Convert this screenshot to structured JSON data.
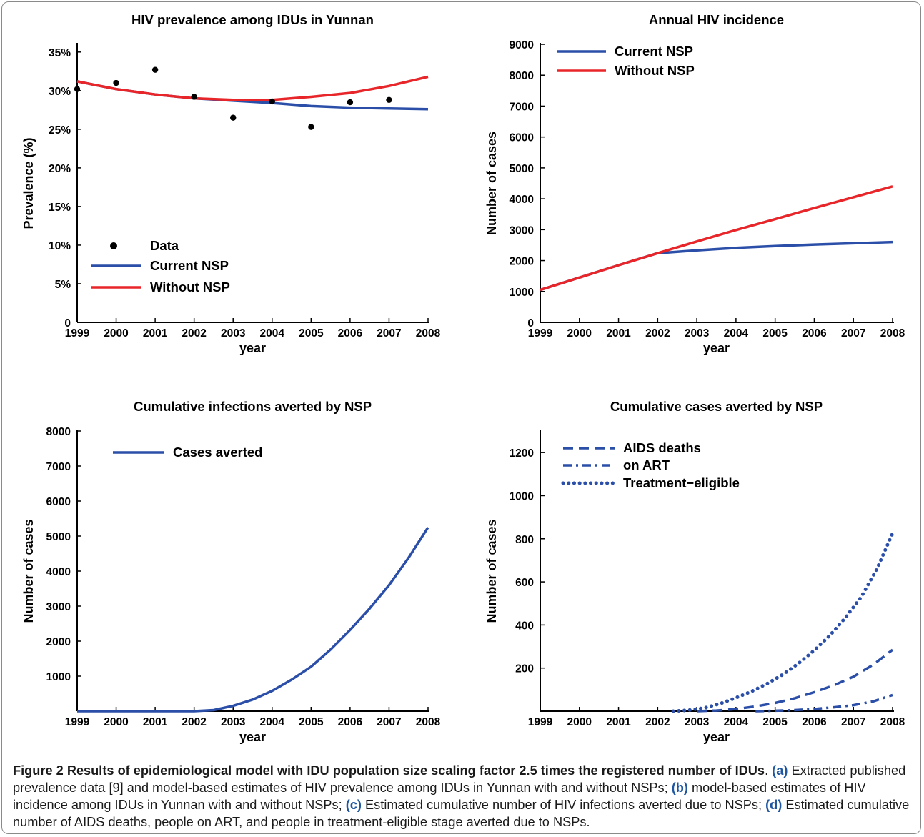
{
  "chart_data": [
    {
      "type": "line",
      "title": "HIV prevalence among IDUs in Yunnan",
      "xlabel": "year",
      "ylabel": "Prevalence (%)",
      "xlim": [
        1999,
        2008
      ],
      "ylim": [
        0,
        36
      ],
      "x_ticks": [
        1999,
        2000,
        2001,
        2002,
        2003,
        2004,
        2005,
        2006,
        2007,
        2008
      ],
      "y_ticks": [
        0,
        5,
        10,
        15,
        20,
        25,
        30,
        35
      ],
      "y_tick_labels": [
        "0",
        "5%",
        "10%",
        "15%",
        "20%",
        "25%",
        "30%",
        "35%"
      ],
      "legend_position": "bottom-left",
      "scatter": {
        "name": "Data",
        "x": [
          1999,
          2000,
          2001,
          2002,
          2003,
          2004,
          2005,
          2006,
          2007
        ],
        "y": [
          30.2,
          31.0,
          32.7,
          29.2,
          26.5,
          28.6,
          25.3,
          28.5,
          28.8
        ]
      },
      "series": [
        {
          "name": "Current NSP",
          "color": "#2b4fa8",
          "x": [
            1999,
            2000,
            2001,
            2002,
            2003,
            2004,
            2005,
            2006,
            2007,
            2008
          ],
          "y": [
            31.2,
            30.2,
            29.5,
            29.0,
            28.7,
            28.4,
            28.0,
            27.8,
            27.7,
            27.6
          ]
        },
        {
          "name": "Without NSP",
          "color": "#e8262a",
          "x": [
            1999,
            2000,
            2001,
            2002,
            2003,
            2004,
            2005,
            2006,
            2007,
            2008
          ],
          "y": [
            31.2,
            30.2,
            29.5,
            29.0,
            28.8,
            28.8,
            29.2,
            29.7,
            30.6,
            31.8
          ]
        }
      ]
    },
    {
      "type": "line",
      "title": "Annual HIV incidence",
      "xlabel": "year",
      "ylabel": "Number of cases",
      "xlim": [
        1999,
        2008
      ],
      "ylim": [
        0,
        9000
      ],
      "x_ticks": [
        1999,
        2000,
        2001,
        2002,
        2003,
        2004,
        2005,
        2006,
        2007,
        2008
      ],
      "y_ticks": [
        0,
        1000,
        2000,
        3000,
        4000,
        5000,
        6000,
        7000,
        8000,
        9000
      ],
      "y_tick_labels": [
        "0",
        "1000",
        "2000",
        "3000",
        "4000",
        "5000",
        "6000",
        "7000",
        "8000",
        "9000"
      ],
      "legend_position": "top-left",
      "series": [
        {
          "name": "Current NSP",
          "color": "#2b4fa8",
          "x": [
            1999,
            2000,
            2001,
            2002,
            2003,
            2004,
            2005,
            2006,
            2007,
            2008
          ],
          "y": [
            1050,
            1450,
            1850,
            2240,
            2330,
            2410,
            2470,
            2520,
            2560,
            2600
          ]
        },
        {
          "name": "Without NSP",
          "color": "#e8262a",
          "x": [
            1999,
            2000,
            2001,
            2002,
            2003,
            2004,
            2005,
            2006,
            2007,
            2008
          ],
          "y": [
            1050,
            1450,
            1850,
            2240,
            2620,
            2990,
            3340,
            3700,
            4050,
            4400
          ]
        }
      ]
    },
    {
      "type": "line",
      "title": "Cumulative infections averted by NSP",
      "xlabel": "year",
      "ylabel": "Number of cases",
      "xlim": [
        1999,
        2008
      ],
      "ylim": [
        0,
        8000
      ],
      "x_ticks": [
        1999,
        2000,
        2001,
        2002,
        2003,
        2004,
        2005,
        2006,
        2007,
        2008
      ],
      "y_ticks": [
        1000,
        2000,
        3000,
        4000,
        5000,
        6000,
        7000,
        8000
      ],
      "y_tick_labels": [
        "1000",
        "2000",
        "3000",
        "4000",
        "5000",
        "6000",
        "7000",
        "8000"
      ],
      "legend_position": "top-left",
      "series": [
        {
          "name": "Cases averted",
          "color": "#2b4fa8",
          "style": "solid",
          "x": [
            1999,
            2000,
            2001,
            2002,
            2002.5,
            2003,
            2003.5,
            2004,
            2004.5,
            2005,
            2005.5,
            2006,
            2006.5,
            2007,
            2007.5,
            2008
          ],
          "y": [
            0,
            0,
            0,
            0,
            30,
            150,
            330,
            580,
            900,
            1270,
            1760,
            2320,
            2930,
            3600,
            4380,
            5250
          ]
        }
      ]
    },
    {
      "type": "line",
      "title": "Cumulative cases averted by NSP",
      "xlabel": "year",
      "ylabel": "Number of cases",
      "xlim": [
        1999,
        2008
      ],
      "ylim": [
        0,
        1300
      ],
      "x_ticks": [
        1999,
        2000,
        2001,
        2002,
        2003,
        2004,
        2005,
        2006,
        2007,
        2008
      ],
      "y_ticks": [
        200,
        400,
        600,
        800,
        1000,
        1200
      ],
      "y_tick_labels": [
        "200",
        "400",
        "600",
        "800",
        "1000",
        "1200"
      ],
      "legend_position": "top-left",
      "series": [
        {
          "name": "AIDS deaths",
          "color": "#2b4fa8",
          "style": "dashed",
          "x": [
            2003,
            2003.5,
            2004,
            2004.5,
            2005,
            2005.5,
            2006,
            2006.5,
            2007,
            2007.5,
            2008
          ],
          "y": [
            0,
            3,
            10,
            22,
            38,
            60,
            88,
            120,
            160,
            215,
            285
          ]
        },
        {
          "name": "on ART",
          "color": "#2b4fa8",
          "style": "dashdot",
          "x": [
            2004.5,
            2005,
            2005.5,
            2006,
            2006.5,
            2007,
            2007.5,
            2008
          ],
          "y": [
            0,
            2,
            5,
            10,
            18,
            28,
            45,
            75
          ]
        },
        {
          "name": "Treatment−eligible",
          "color": "#2b4fa8",
          "style": "dotted",
          "x": [
            2002.4,
            2002.8,
            2003.2,
            2003.6,
            2004,
            2004.4,
            2004.8,
            2005.2,
            2005.6,
            2006,
            2006.4,
            2006.8,
            2007.2,
            2007.6,
            2008
          ],
          "y": [
            0,
            5,
            15,
            35,
            62,
            92,
            128,
            170,
            222,
            282,
            352,
            435,
            530,
            660,
            825
          ]
        }
      ]
    }
  ],
  "caption": {
    "figure_label": "Figure 2",
    "title": "Results of epidemiological model with IDU population size scaling factor 2.5 times the registered number of IDUs",
    "a_label": "(a)",
    "a_text": "Extracted published prevalence data [9] and model-based estimates of HIV prevalence among IDUs in Yunnan with and without NSPs;",
    "b_label": "(b)",
    "b_text": "model-based estimates of HIV incidence among IDUs in Yunnan with and without NSPs;",
    "c_label": "(c)",
    "c_text": "Estimated cumulative number of HIV infections averted due to NSPs;",
    "d_label": "(d)",
    "d_text": "Estimated cumulative number of AIDS deaths, people on ART, and people in treatment-eligible stage averted due to NSPs."
  }
}
